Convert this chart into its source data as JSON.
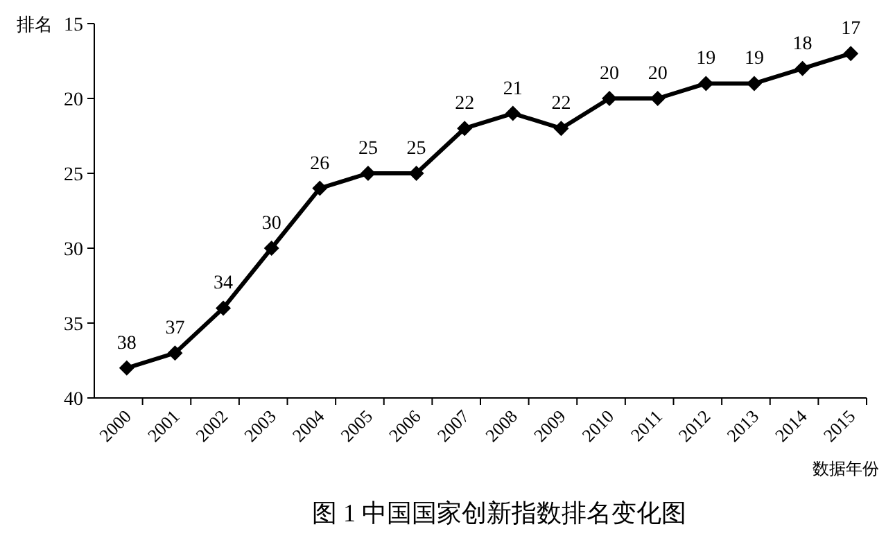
{
  "chart_data": {
    "type": "line",
    "title": "图 1  中国国家创新指数排名变化图",
    "ylabel": "排名",
    "xlabel": "数据年份",
    "categories": [
      "2000",
      "2001",
      "2002",
      "2003",
      "2004",
      "2005",
      "2006",
      "2007",
      "2008",
      "2009",
      "2010",
      "2011",
      "2012",
      "2013",
      "2014",
      "2015"
    ],
    "series": [
      {
        "color": "#000000",
        "values": [
          38,
          37,
          34,
          30,
          26,
          25,
          25,
          22,
          21,
          22,
          20,
          20,
          19,
          19,
          18,
          17
        ]
      }
    ],
    "ylim": [
      40,
      15
    ],
    "yticks": [
      15,
      20,
      25,
      30,
      35,
      40
    ],
    "data_labels": true,
    "marker": "diamond"
  }
}
